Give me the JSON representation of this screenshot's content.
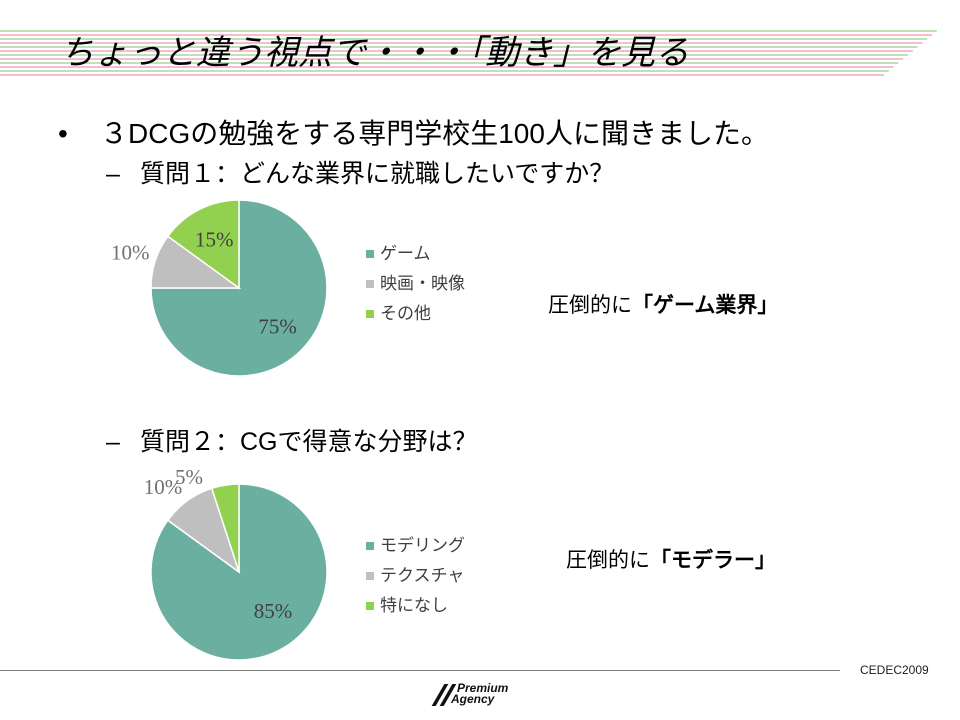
{
  "slide": {
    "title": "ちょっと違う視点で・・・「動き」を見る",
    "bullet_marker": "•",
    "bullet": "３DCGの勉強をする専門学校生100人に聞きました。",
    "sub_marker": "–",
    "question1": "質問１：どんな業界に就職したいですか？",
    "question2": "質問２：CGで得意な分野は？",
    "conclusion1_prefix": "圧倒的に",
    "conclusion1_bold": "「ゲーム業界」",
    "conclusion2_prefix": "圧倒的に",
    "conclusion2_bold": "「モデラー」"
  },
  "footer": {
    "event": "CEDEC2009",
    "logo": {
      "line1": "Premium",
      "line2": "Agency"
    }
  },
  "colors": {
    "teal": "#6aaf9f",
    "gray": "#bfbfbf",
    "green": "#92d050",
    "stripe_green": "#a9d89c",
    "stripe_pink": "#f2a7c6"
  },
  "chart_data": [
    {
      "type": "pie",
      "categories": [
        "ゲーム",
        "映画・映像",
        "その他"
      ],
      "values": [
        75,
        10,
        15
      ],
      "labels": [
        "75%",
        "10%",
        "15%"
      ],
      "colors": [
        "#6aaf9f",
        "#bfbfbf",
        "#92d050"
      ],
      "legend": "right"
    },
    {
      "type": "pie",
      "categories": [
        "モデリング",
        "テクスチャ",
        "特になし"
      ],
      "values": [
        85,
        10,
        5
      ],
      "labels": [
        "85%",
        "10%",
        "5%"
      ],
      "colors": [
        "#6aaf9f",
        "#bfbfbf",
        "#92d050"
      ],
      "legend": "right"
    }
  ]
}
